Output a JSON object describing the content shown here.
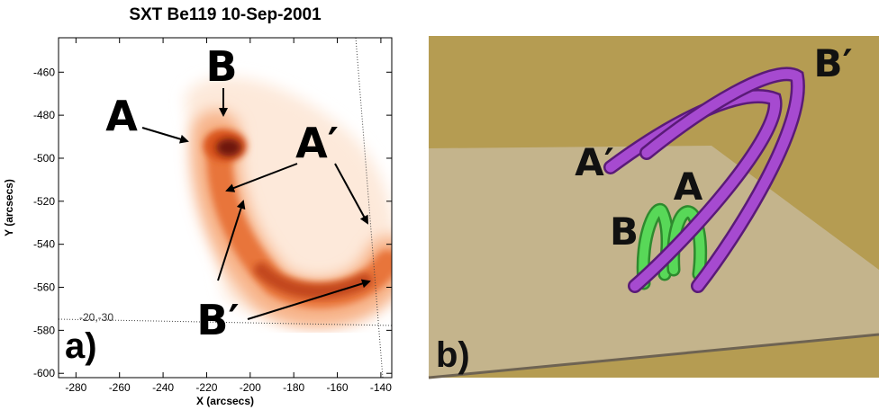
{
  "panel_a": {
    "title": "SXT Be119 10-Sep-2001",
    "x_label": "X (arcsecs)",
    "y_label": "Y (arcsecs)",
    "xlim": [
      -288,
      -135
    ],
    "ylim": [
      -602,
      -444
    ],
    "xticks": [
      -280,
      -260,
      -240,
      -220,
      -200,
      -180,
      -160,
      -140
    ],
    "yticks": [
      -460,
      -480,
      -500,
      -520,
      -540,
      -560,
      -580,
      -600
    ],
    "labels": [
      "A",
      "B",
      "A′",
      "B′"
    ],
    "inset_text": "-20,-30",
    "panel_label": "a)"
  },
  "panel_b": {
    "labels": [
      "A′",
      "B′",
      "A",
      "B"
    ],
    "panel_label": "b)"
  }
}
